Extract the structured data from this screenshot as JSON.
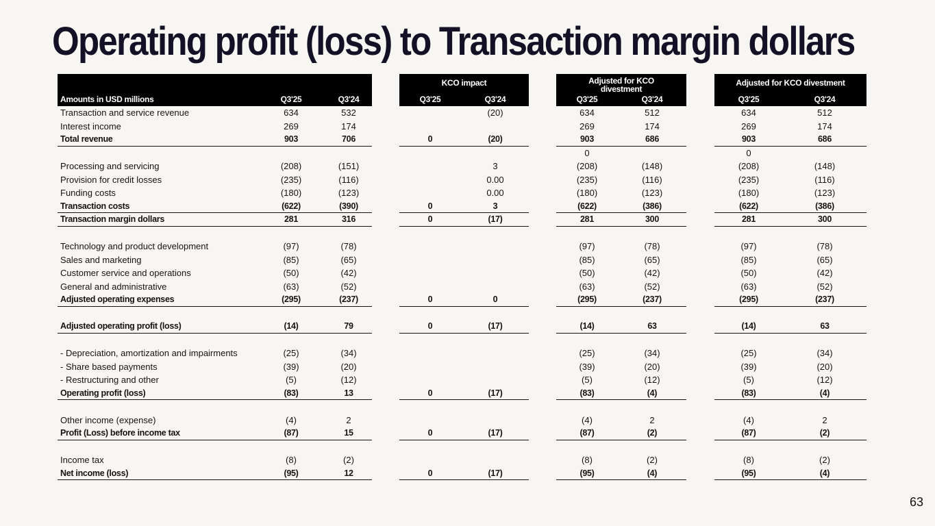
{
  "title": "Operating profit (loss) to Transaction margin dollars",
  "page_number": "63",
  "header": {
    "label": "Amounts in USD millions",
    "groups": [
      "",
      "KCO impact",
      "Adjusted for KCO divestment",
      "Adjusted for KCO divestment"
    ],
    "periods": [
      "Q3'25",
      "Q3'24"
    ]
  },
  "rows": [
    {
      "label": "Transaction and service revenue",
      "bold": false,
      "rule": false,
      "v": [
        "634",
        "532",
        "",
        "(20)",
        "634",
        "512",
        "634",
        "512"
      ]
    },
    {
      "label": "Interest income",
      "bold": false,
      "rule": false,
      "v": [
        "269",
        "174",
        "",
        "",
        "269",
        "174",
        "269",
        "174"
      ]
    },
    {
      "label": "Total revenue",
      "bold": true,
      "rule": true,
      "v": [
        "903",
        "706",
        "0",
        "(20)",
        "903",
        "686",
        "903",
        "686"
      ]
    },
    {
      "label": "",
      "bold": false,
      "rule": false,
      "v": [
        "",
        "",
        "",
        "",
        "0",
        "",
        "0",
        ""
      ]
    },
    {
      "label": "Processing and servicing",
      "bold": false,
      "rule": false,
      "v": [
        "(208)",
        "(151)",
        "",
        "3",
        "(208)",
        "(148)",
        "(208)",
        "(148)"
      ]
    },
    {
      "label": "Provision for credit losses",
      "bold": false,
      "rule": false,
      "v": [
        "(235)",
        "(116)",
        "",
        "0.00",
        "(235)",
        "(116)",
        "(235)",
        "(116)"
      ]
    },
    {
      "label": "Funding costs",
      "bold": false,
      "rule": false,
      "v": [
        "(180)",
        "(123)",
        "",
        "0.00",
        "(180)",
        "(123)",
        "(180)",
        "(123)"
      ]
    },
    {
      "label": "Transaction costs",
      "bold": true,
      "rule": true,
      "v": [
        "(622)",
        "(390)",
        "0",
        "3",
        "(622)",
        "(386)",
        "(622)",
        "(386)"
      ]
    },
    {
      "label": "Transaction margin dollars",
      "bold": true,
      "rule": true,
      "v": [
        "281",
        "316",
        "0",
        "(17)",
        "281",
        "300",
        "281",
        "300"
      ]
    },
    {
      "label": "",
      "bold": false,
      "rule": false,
      "v": [
        "",
        "",
        "",
        "",
        "",
        "",
        "",
        ""
      ]
    },
    {
      "label": "Technology and product development",
      "bold": false,
      "rule": false,
      "v": [
        "(97)",
        "(78)",
        "",
        "",
        "(97)",
        "(78)",
        "(97)",
        "(78)"
      ]
    },
    {
      "label": "Sales and marketing",
      "bold": false,
      "rule": false,
      "v": [
        "(85)",
        "(65)",
        "",
        "",
        "(85)",
        "(65)",
        "(85)",
        "(65)"
      ]
    },
    {
      "label": "Customer service and operations",
      "bold": false,
      "rule": false,
      "v": [
        "(50)",
        "(42)",
        "",
        "",
        "(50)",
        "(42)",
        "(50)",
        "(42)"
      ]
    },
    {
      "label": "General and administrative",
      "bold": false,
      "rule": false,
      "v": [
        "(63)",
        "(52)",
        "",
        "",
        "(63)",
        "(52)",
        "(63)",
        "(52)"
      ]
    },
    {
      "label": "Adjusted operating expenses",
      "bold": true,
      "rule": true,
      "v": [
        "(295)",
        "(237)",
        "0",
        "0",
        "(295)",
        "(237)",
        "(295)",
        "(237)"
      ]
    },
    {
      "label": "",
      "bold": false,
      "rule": false,
      "v": [
        "",
        "",
        "",
        "",
        "",
        "",
        "",
        ""
      ]
    },
    {
      "label": "Adjusted operating profit (loss)",
      "bold": true,
      "rule": true,
      "v": [
        "(14)",
        "79",
        "0",
        "(17)",
        "(14)",
        "63",
        "(14)",
        "63"
      ]
    },
    {
      "label": "",
      "bold": false,
      "rule": false,
      "v": [
        "",
        "",
        "",
        "",
        "",
        "",
        "",
        ""
      ]
    },
    {
      "label": "- Depreciation, amortization and impairments",
      "bold": false,
      "rule": false,
      "v": [
        "(25)",
        "(34)",
        "",
        "",
        "(25)",
        "(34)",
        "(25)",
        "(34)"
      ]
    },
    {
      "label": "- Share based payments",
      "bold": false,
      "rule": false,
      "v": [
        "(39)",
        "(20)",
        "",
        "",
        "(39)",
        "(20)",
        "(39)",
        "(20)"
      ]
    },
    {
      "label": "- Restructuring and other",
      "bold": false,
      "rule": false,
      "v": [
        "(5)",
        "(12)",
        "",
        "",
        "(5)",
        "(12)",
        "(5)",
        "(12)"
      ]
    },
    {
      "label": "Operating profit (loss)",
      "bold": true,
      "rule": true,
      "v": [
        "(83)",
        "13",
        "0",
        "(17)",
        "(83)",
        "(4)",
        "(83)",
        "(4)"
      ]
    },
    {
      "label": "",
      "bold": false,
      "rule": false,
      "v": [
        "",
        "",
        "",
        "",
        "",
        "",
        "",
        ""
      ]
    },
    {
      "label": "Other income (expense)",
      "bold": false,
      "rule": false,
      "v": [
        "(4)",
        "2",
        "",
        "",
        "(4)",
        "2",
        "(4)",
        "2"
      ]
    },
    {
      "label": "Profit (Loss) before income tax",
      "bold": true,
      "rule": true,
      "v": [
        "(87)",
        "15",
        "0",
        "(17)",
        "(87)",
        "(2)",
        "(87)",
        "(2)"
      ]
    },
    {
      "label": "",
      "bold": false,
      "rule": false,
      "v": [
        "",
        "",
        "",
        "",
        "",
        "",
        "",
        ""
      ]
    },
    {
      "label": "Income tax",
      "bold": false,
      "rule": false,
      "v": [
        "(8)",
        "(2)",
        "",
        "",
        "(8)",
        "(2)",
        "(8)",
        "(2)"
      ]
    },
    {
      "label": "Net income (loss)",
      "bold": true,
      "rule": true,
      "v": [
        "(95)",
        "12",
        "0",
        "(17)",
        "(95)",
        "(4)",
        "(95)",
        "(4)"
      ]
    }
  ]
}
